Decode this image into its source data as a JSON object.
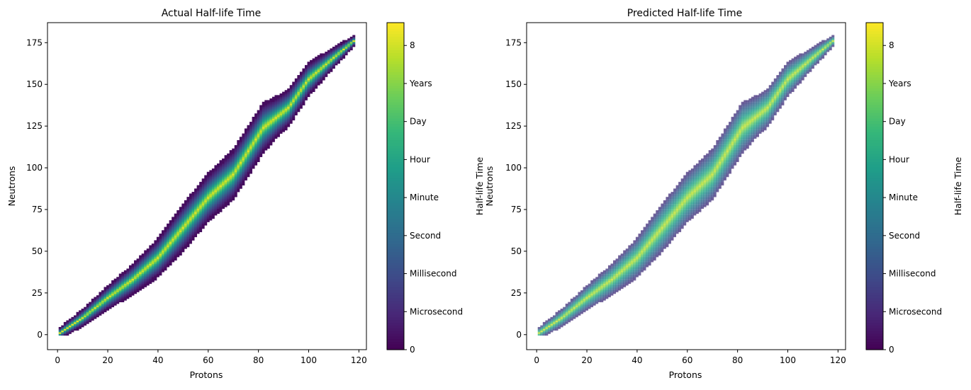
{
  "colors": {
    "viridis": [
      "#440154",
      "#482878",
      "#3e4a89",
      "#31688e",
      "#26828e",
      "#1f9e89",
      "#35b779",
      "#6ece58",
      "#b5de2b",
      "#fde725"
    ],
    "axis": "#000000"
  },
  "chart_data": [
    {
      "type": "heatmap",
      "title": "Actual Half-life Time",
      "xlabel": "Protons",
      "ylabel": "Neutrons",
      "xlim": [
        -4,
        123
      ],
      "ylim": [
        -9,
        187
      ],
      "xticks": [
        0,
        20,
        40,
        60,
        80,
        100,
        120
      ],
      "yticks": [
        0,
        25,
        50,
        75,
        100,
        125,
        150,
        175
      ],
      "colorbar": {
        "label": "Half-life Time",
        "range": [
          0,
          8.6
        ],
        "ticks": [
          {
            "value": 0,
            "label": "0"
          },
          {
            "value": 1,
            "label": "Microsecond"
          },
          {
            "value": 2,
            "label": "Millisecond"
          },
          {
            "value": 3,
            "label": "Second"
          },
          {
            "value": 4,
            "label": "Minute"
          },
          {
            "value": 5,
            "label": "Hour"
          },
          {
            "value": 6,
            "label": "Day"
          },
          {
            "value": 7,
            "label": "Years"
          },
          {
            "value": 8,
            "label": "8"
          }
        ]
      },
      "band": {
        "stability_line": [
          [
            1,
            1
          ],
          [
            10,
            10
          ],
          [
            20,
            22
          ],
          [
            30,
            33
          ],
          [
            40,
            46
          ],
          [
            50,
            64
          ],
          [
            60,
            82
          ],
          [
            70,
            96
          ],
          [
            82,
            124
          ],
          [
            92,
            136
          ],
          [
            100,
            153
          ],
          [
            110,
            166
          ],
          [
            118,
            176
          ]
        ],
        "half_width": [
          [
            0,
            3
          ],
          [
            10,
            5
          ],
          [
            30,
            9
          ],
          [
            50,
            14
          ],
          [
            70,
            15
          ],
          [
            82,
            15
          ],
          [
            88,
            12
          ],
          [
            100,
            10
          ],
          [
            118,
            3
          ]
        ],
        "edge_value": 0.3,
        "center_value": 8.2,
        "style": "sharp"
      }
    },
    {
      "type": "heatmap",
      "title": "Predicted Half-life Time",
      "xlabel": "Protons",
      "ylabel": "Neutrons",
      "xlim": [
        -4,
        123
      ],
      "ylim": [
        -9,
        187
      ],
      "xticks": [
        0,
        20,
        40,
        60,
        80,
        100,
        120
      ],
      "yticks": [
        0,
        25,
        50,
        75,
        100,
        125,
        150,
        175
      ],
      "colorbar": {
        "label": "Half-life Time",
        "range": [
          0,
          8.6
        ],
        "ticks": [
          {
            "value": 0,
            "label": "0"
          },
          {
            "value": 1,
            "label": "Microsecond"
          },
          {
            "value": 2,
            "label": "Millisecond"
          },
          {
            "value": 3,
            "label": "Second"
          },
          {
            "value": 4,
            "label": "Minute"
          },
          {
            "value": 5,
            "label": "Hour"
          },
          {
            "value": 6,
            "label": "Day"
          },
          {
            "value": 7,
            "label": "Years"
          },
          {
            "value": 8,
            "label": "8"
          }
        ]
      },
      "band": {
        "stability_line": [
          [
            1,
            1
          ],
          [
            10,
            10
          ],
          [
            20,
            22
          ],
          [
            30,
            33
          ],
          [
            40,
            46
          ],
          [
            50,
            64
          ],
          [
            60,
            82
          ],
          [
            70,
            96
          ],
          [
            82,
            124
          ],
          [
            92,
            136
          ],
          [
            100,
            153
          ],
          [
            110,
            166
          ],
          [
            118,
            176
          ]
        ],
        "half_width": [
          [
            0,
            3
          ],
          [
            10,
            5
          ],
          [
            30,
            9
          ],
          [
            50,
            14
          ],
          [
            70,
            15
          ],
          [
            82,
            15
          ],
          [
            88,
            12
          ],
          [
            100,
            10
          ],
          [
            118,
            3
          ]
        ],
        "edge_value": 1.2,
        "center_value": 7.8,
        "style": "smooth"
      }
    }
  ]
}
